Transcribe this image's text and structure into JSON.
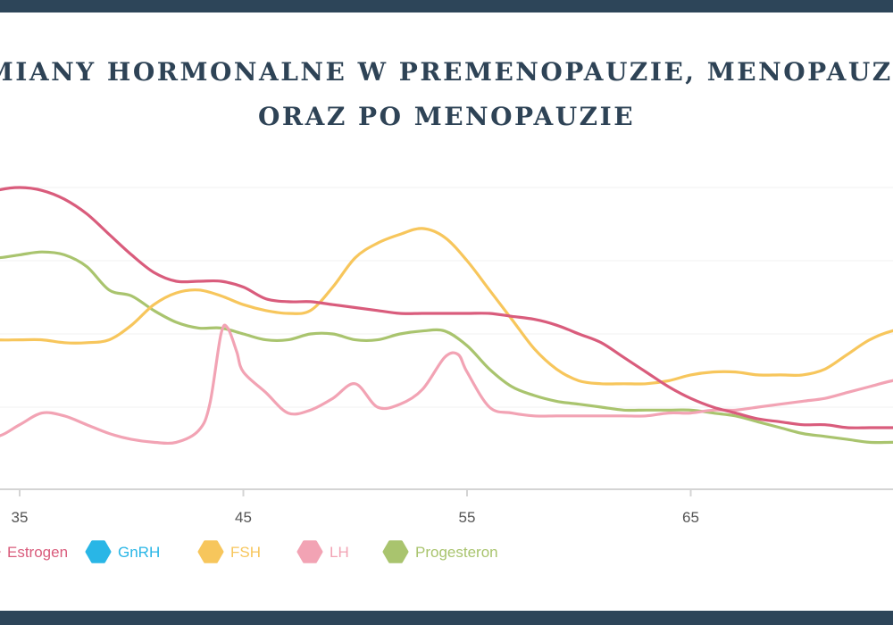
{
  "chart_data": {
    "type": "line",
    "title": "ZMIANY HORMONALNE W PREMENOPAUZIE, MENOPAUZIE",
    "title_line2": "ORAZ PO MENOPAUZIE",
    "xlabel": "",
    "ylabel": "",
    "x_ticks": [
      "35",
      "45",
      "55",
      "65"
    ],
    "xlim": [
      34.5,
      75.5
    ],
    "ylim": [
      0,
      10
    ],
    "grid": true,
    "legend_position": "bottom-left",
    "series": [
      {
        "name": "Estrogen",
        "color": "#d95c7c",
        "x": [
          33,
          34,
          35,
          36,
          37,
          38,
          39,
          40,
          41,
          42,
          43,
          44,
          45,
          46,
          47,
          48,
          49,
          50,
          51,
          52,
          53,
          54,
          55,
          56,
          57,
          58,
          59,
          60,
          61,
          62,
          63,
          64,
          65,
          66,
          67,
          68,
          69,
          70,
          71,
          72,
          73,
          74,
          75,
          76
        ],
        "y": [
          9.6,
          9.9,
          10.0,
          9.9,
          9.6,
          9.1,
          8.4,
          7.7,
          7.1,
          6.8,
          6.8,
          6.8,
          6.6,
          6.2,
          6.1,
          6.1,
          6.0,
          5.9,
          5.8,
          5.7,
          5.7,
          5.7,
          5.7,
          5.7,
          5.6,
          5.5,
          5.3,
          5.0,
          4.7,
          4.2,
          3.7,
          3.2,
          2.8,
          2.5,
          2.3,
          2.1,
          2.0,
          1.9,
          1.9,
          1.8,
          1.8,
          1.8,
          1.8,
          1.8
        ]
      },
      {
        "name": "GnRH",
        "color": "#29b6e6",
        "x": [],
        "y": []
      },
      {
        "name": "FSH",
        "color": "#f7c65c",
        "x": [
          33,
          34,
          35,
          36,
          37,
          38,
          39,
          40,
          41,
          42,
          43,
          44,
          45,
          46,
          47,
          48,
          49,
          50,
          51,
          52,
          53,
          54,
          55,
          56,
          57,
          58,
          59,
          60,
          61,
          62,
          63,
          64,
          65,
          66,
          67,
          68,
          69,
          70,
          71,
          72,
          73,
          74,
          75,
          76
        ],
        "y": [
          4.9,
          4.8,
          4.8,
          4.8,
          4.7,
          4.7,
          4.8,
          5.3,
          6.0,
          6.4,
          6.5,
          6.3,
          6.0,
          5.8,
          5.7,
          5.8,
          6.6,
          7.6,
          8.1,
          8.4,
          8.6,
          8.3,
          7.5,
          6.5,
          5.5,
          4.5,
          3.8,
          3.4,
          3.3,
          3.3,
          3.3,
          3.4,
          3.6,
          3.7,
          3.7,
          3.6,
          3.6,
          3.6,
          3.8,
          4.3,
          4.8,
          5.1,
          5.2,
          5.2
        ]
      },
      {
        "name": "LH",
        "color": "#f2a3b4",
        "x": [
          33,
          34,
          35,
          36,
          37,
          38,
          39,
          40,
          41,
          42,
          43,
          43.5,
          44,
          44.3,
          44.7,
          45,
          46,
          47,
          48,
          49,
          50,
          51,
          52,
          53,
          54,
          54.6,
          55,
          56,
          57,
          58,
          59,
          60,
          61,
          62,
          63,
          64,
          65,
          66,
          67,
          68,
          69,
          70,
          71,
          72,
          73,
          74,
          75,
          76
        ],
        "y": [
          1.6,
          1.5,
          1.9,
          2.3,
          2.2,
          1.9,
          1.6,
          1.4,
          1.3,
          1.3,
          1.7,
          2.6,
          5.0,
          5.2,
          4.4,
          3.7,
          3.0,
          2.3,
          2.4,
          2.8,
          3.3,
          2.5,
          2.6,
          3.1,
          4.2,
          4.3,
          3.7,
          2.5,
          2.3,
          2.2,
          2.2,
          2.2,
          2.2,
          2.2,
          2.2,
          2.3,
          2.3,
          2.4,
          2.4,
          2.5,
          2.6,
          2.7,
          2.8,
          3.0,
          3.2,
          3.4,
          3.5,
          3.5
        ]
      },
      {
        "name": "Progesteron",
        "color": "#a9c46e",
        "x": [
          33,
          34,
          35,
          36,
          37,
          38,
          39,
          40,
          41,
          42,
          43,
          44,
          45,
          46,
          47,
          48,
          49,
          50,
          51,
          52,
          53,
          54,
          55,
          56,
          57,
          58,
          59,
          60,
          61,
          62,
          63,
          64,
          65,
          66,
          67,
          68,
          69,
          70,
          71,
          72,
          73,
          74,
          75,
          76
        ],
        "y": [
          7.7,
          7.6,
          7.7,
          7.8,
          7.7,
          7.3,
          6.5,
          6.3,
          5.8,
          5.4,
          5.2,
          5.2,
          5.0,
          4.8,
          4.8,
          5.0,
          5.0,
          4.8,
          4.8,
          5.0,
          5.1,
          5.1,
          4.6,
          3.8,
          3.2,
          2.9,
          2.7,
          2.6,
          2.5,
          2.4,
          2.4,
          2.4,
          2.4,
          2.3,
          2.2,
          2.0,
          1.8,
          1.6,
          1.5,
          1.4,
          1.3,
          1.3,
          1.3,
          1.3
        ]
      }
    ]
  }
}
